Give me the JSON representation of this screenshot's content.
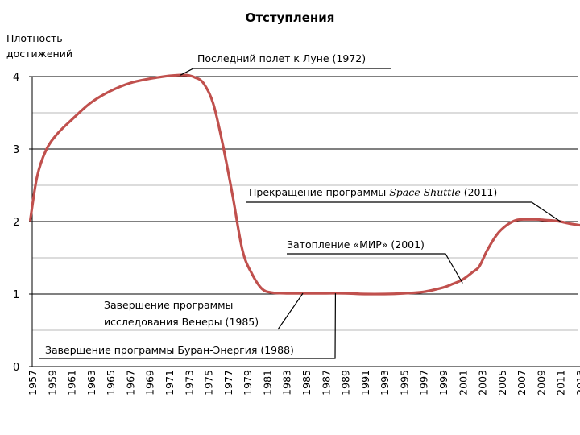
{
  "chart_data": {
    "type": "line",
    "title": "Отступления",
    "ylabel_lines": [
      "Плотность",
      "достижений"
    ],
    "xlabel": "",
    "ylim": [
      0,
      4
    ],
    "yticks": [
      0,
      1,
      2,
      3,
      4
    ],
    "xlim": [
      1957,
      2013
    ],
    "xticks": [
      "1957",
      "1959",
      "1961",
      "1963",
      "1965",
      "1967",
      "1969",
      "1971",
      "1973",
      "1975",
      "1977",
      "1979",
      "1981",
      "1983",
      "1985",
      "1987",
      "1989",
      "1991",
      "1993",
      "1995",
      "1997",
      "1999",
      "2001",
      "2003",
      "2005",
      "2007",
      "2009",
      "2011",
      "2013"
    ],
    "series": [
      {
        "name": "Плотность достижений",
        "color": "#c0504d",
        "x": [
          1956.8,
          1957.5,
          1958.4,
          1959.5,
          1961,
          1963,
          1965,
          1967,
          1969,
          1971,
          1972,
          1972.8,
          1973.6,
          1974.5,
          1975.5,
          1976.5,
          1977.5,
          1978.5,
          1979.5,
          1980.5,
          1981.5,
          1983,
          1985,
          1987,
          1989,
          1991,
          1993,
          1995,
          1997,
          1999,
          2000,
          2001,
          2002,
          2002.7,
          2003.5,
          2004.5,
          2005.5,
          2006.5,
          2007.5,
          2008.5,
          2009.5,
          2010.5,
          2011,
          2012,
          2013
        ],
        "y": [
          2.02,
          2.62,
          2.98,
          3.2,
          3.4,
          3.64,
          3.8,
          3.91,
          3.97,
          4.01,
          4.02,
          4.02,
          3.99,
          3.91,
          3.63,
          3.05,
          2.35,
          1.6,
          1.27,
          1.07,
          1.02,
          1.01,
          1.01,
          1.01,
          1.01,
          1.0,
          1.0,
          1.01,
          1.03,
          1.09,
          1.14,
          1.2,
          1.3,
          1.38,
          1.6,
          1.82,
          1.95,
          2.02,
          2.03,
          2.03,
          2.02,
          2.01,
          2.0,
          1.97,
          1.95
        ]
      }
    ],
    "annotations": [
      {
        "text": "Последний полет к Луне (1972)",
        "x": 1972,
        "y": 4.02
      },
      {
        "text": "Прекращение программы ",
        "text_italic": "Space Shuttle",
        "text_after": " (2011)",
        "x": 2011,
        "y": 2.0
      },
      {
        "text": "Затопление «МИР» (2001)",
        "x": 2001,
        "y": 1.15
      },
      {
        "text_lines": [
          "Завершение программы",
          "исследования Венеры (1985)"
        ],
        "x": 1985,
        "y": 1.01
      },
      {
        "text": "Завершение программы Буран-Энергия (1988)",
        "x": 1988,
        "y": 1.01
      }
    ]
  }
}
